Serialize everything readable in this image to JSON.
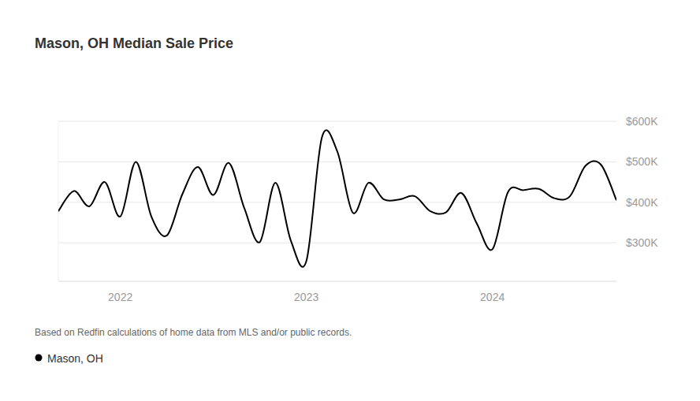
{
  "chart_data": {
    "type": "line",
    "title": "Mason, OH Median Sale Price",
    "source": "Based on Redfin calculations of home data from MLS and/or public records.",
    "categories": [
      null,
      null,
      null,
      null,
      "2022",
      null,
      null,
      null,
      null,
      null,
      null,
      null,
      null,
      null,
      null,
      null,
      "2023",
      null,
      null,
      null,
      null,
      null,
      null,
      null,
      null,
      null,
      null,
      null,
      "2024",
      null,
      null,
      null,
      null,
      null,
      null,
      null,
      null
    ],
    "series": [
      {
        "name": "Mason, OH",
        "color": "#000000",
        "values": [
          378000,
          428000,
          390000,
          450000,
          365000,
          500000,
          365000,
          318000,
          420000,
          487000,
          418000,
          497000,
          385000,
          302000,
          448000,
          305000,
          255000,
          560000,
          525000,
          374000,
          448000,
          407000,
          407000,
          415000,
          378000,
          375000,
          423000,
          347000,
          284000,
          425000,
          430000,
          433000,
          410000,
          415000,
          490000,
          493000,
          405000
        ]
      }
    ],
    "ylim": [
      205000,
      600000
    ],
    "yticks": [
      {
        "value": 300000,
        "label": "$300K"
      },
      {
        "value": 400000,
        "label": "$400K"
      },
      {
        "value": 500000,
        "label": "$500K"
      },
      {
        "value": 600000,
        "label": "$600K"
      }
    ],
    "grid": true,
    "legend": "bottom-left"
  }
}
